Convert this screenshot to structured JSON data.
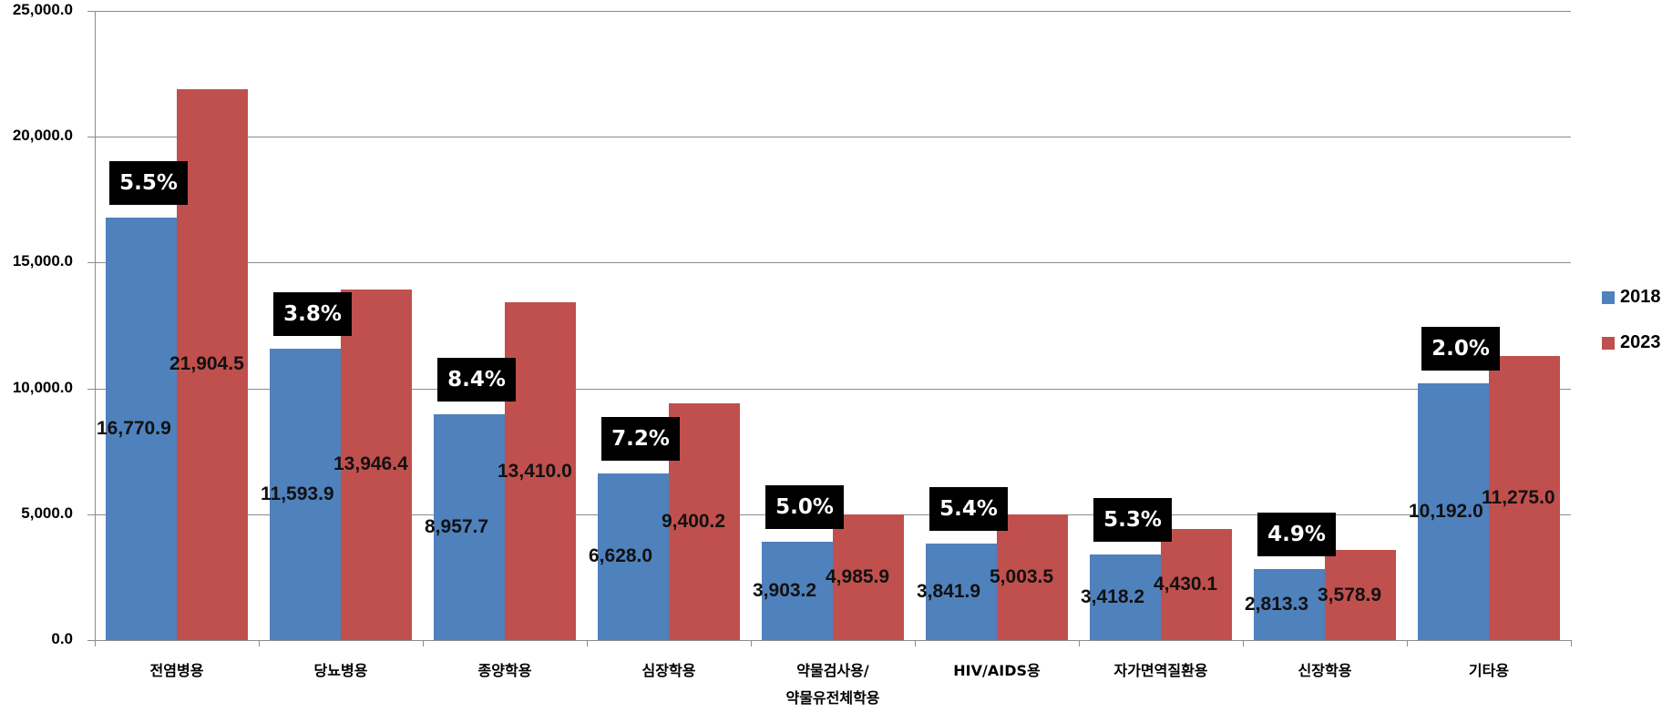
{
  "chart_data": {
    "type": "bar",
    "title": "",
    "xlabel": "",
    "ylabel": "",
    "ylim": [
      0,
      25000
    ],
    "yticks": [
      "0.0",
      "5,000.0",
      "10,000.0",
      "15,000.0",
      "20,000.0",
      "25,000.0"
    ],
    "grid": true,
    "legend_position": "right",
    "categories": [
      "전염병용",
      "당뇨병용",
      "종양학용",
      "심장학용",
      "약물검사용/\n약물유전체학용",
      "HIV/AIDS용",
      "자가면역질환용",
      "신장학용",
      "기타용"
    ],
    "series": [
      {
        "name": "2018",
        "color": "#4f81bd",
        "values": [
          16770.9,
          11593.9,
          8957.7,
          6628.0,
          3903.2,
          3841.9,
          3418.2,
          2813.3,
          10192.0
        ],
        "labels": [
          "16,770.9",
          "11,593.9",
          "8,957.7",
          "6,628.0",
          "3,903.2",
          "3,841.9",
          "3,418.2",
          "2,813.3",
          "10,192.0"
        ]
      },
      {
        "name": "2023",
        "color": "#c0504d",
        "values": [
          21904.5,
          13946.4,
          13410.0,
          9400.2,
          4985.9,
          5003.5,
          4430.1,
          3578.9,
          11275.0
        ],
        "labels": [
          "21,904.5",
          "13,946.4",
          "13,410.0",
          "9,400.2",
          "4,985.9",
          "5,003.5",
          "4,430.1",
          "3,578.9",
          "11,275.0"
        ]
      }
    ],
    "annotations": [
      "5.5%",
      "3.8%",
      "8.4%",
      "7.2%",
      "5.0%",
      "5.4%",
      "5.3%",
      "4.9%",
      "2.0%"
    ],
    "annotation_meaning": "growth rate label per category (black box)"
  },
  "axis": {
    "yticks": [
      "0.0",
      "5,000.0",
      "10,000.0",
      "15,000.0",
      "20,000.0",
      "25,000.0"
    ]
  },
  "categories": [
    "전염병용",
    "당뇨병용",
    "종양학용",
    "심장학용",
    "약물검사용/",
    "HIV/AIDS용",
    "자가면역질환용",
    "신장학용",
    "기타용"
  ],
  "category_line2": [
    "",
    "",
    "",
    "",
    "약물유전체학용",
    "",
    "",
    "",
    ""
  ],
  "values_2018": [
    "16,770.9",
    "11,593.9",
    "8,957.7",
    "6,628.0",
    "3,903.2",
    "3,841.9",
    "3,418.2",
    "2,813.3",
    "10,192.0"
  ],
  "values_2023": [
    "21,904.5",
    "13,946.4",
    "13,410.0",
    "9,400.2",
    "4,985.9",
    "5,003.5",
    "4,430.1",
    "3,578.9",
    "11,275.0"
  ],
  "growth": [
    "5.5%",
    "3.8%",
    "8.4%",
    "7.2%",
    "5.0%",
    "5.4%",
    "5.3%",
    "4.9%",
    "2.0%"
  ],
  "legend": {
    "items": [
      {
        "label": "2018",
        "color": "#4f81bd"
      },
      {
        "label": "2023",
        "color": "#c0504d"
      }
    ]
  }
}
